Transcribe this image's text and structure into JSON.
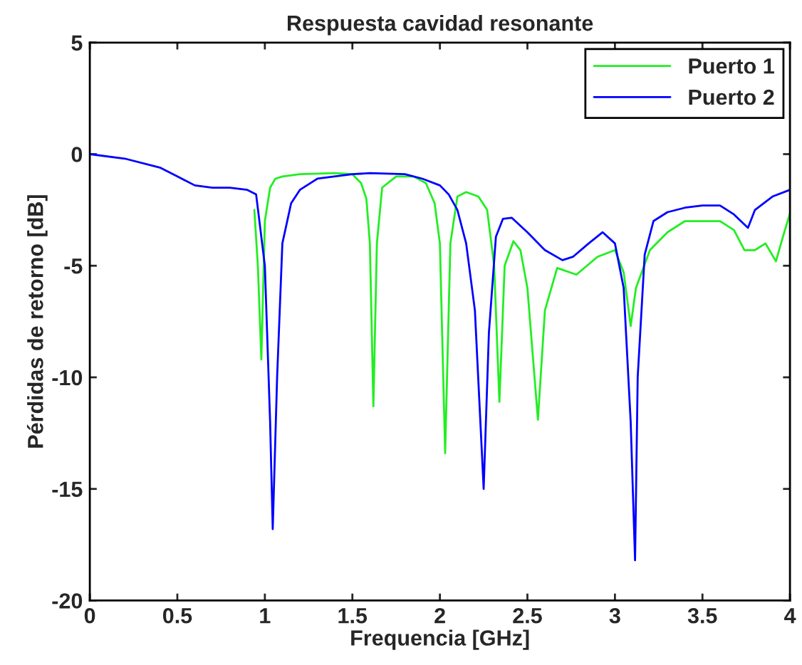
{
  "chart_data": {
    "type": "line",
    "title": "Respuesta cavidad resonante",
    "xlabel": "Frequencia [GHz]",
    "ylabel": "Pérdidas de retorno [dB]",
    "xlim": [
      0,
      4
    ],
    "ylim": [
      -20,
      5
    ],
    "xticks": [
      0,
      0.5,
      1,
      1.5,
      2,
      2.5,
      3,
      3.5,
      4
    ],
    "yticks": [
      -20,
      -15,
      -10,
      -5,
      0,
      5
    ],
    "grid": false,
    "legend": "top right",
    "marker": "none",
    "line_style": "solid",
    "series": [
      {
        "name": "Puerto 1",
        "color": "#22ee22",
        "x": [
          0.94,
          0.96,
          0.98,
          1.0,
          1.03,
          1.06,
          1.1,
          1.2,
          1.4,
          1.5,
          1.55,
          1.58,
          1.6,
          1.62,
          1.64,
          1.67,
          1.75,
          1.85,
          1.92,
          1.97,
          2.0,
          2.03,
          2.06,
          2.1,
          2.15,
          2.22,
          2.27,
          2.31,
          2.34,
          2.37,
          2.42,
          2.46,
          2.5,
          2.56,
          2.6,
          2.67,
          2.78,
          2.9,
          3.0,
          3.05,
          3.09,
          3.12,
          3.2,
          3.3,
          3.4,
          3.5,
          3.6,
          3.68,
          3.74,
          3.8,
          3.86,
          3.92,
          3.96,
          4.0
        ],
        "values": [
          -2.5,
          -5,
          -9.2,
          -3,
          -1.5,
          -1.1,
          -1.0,
          -0.9,
          -0.85,
          -0.9,
          -1.3,
          -2,
          -4,
          -11.3,
          -4,
          -1.5,
          -1.0,
          -1.0,
          -1.3,
          -2.2,
          -4,
          -13.4,
          -4,
          -1.9,
          -1.7,
          -1.9,
          -2.5,
          -5,
          -11.1,
          -5,
          -3.9,
          -4.3,
          -6,
          -11.9,
          -7,
          -5.1,
          -5.4,
          -4.6,
          -4.3,
          -5.3,
          -7.7,
          -6,
          -4.3,
          -3.5,
          -3.0,
          -3.0,
          -3.0,
          -3.4,
          -4.3,
          -4.3,
          -4.0,
          -4.8,
          -3.7,
          -2.65
        ]
      },
      {
        "name": "Puerto 2",
        "color": "#0000ff",
        "x": [
          0,
          0.2,
          0.4,
          0.5,
          0.6,
          0.7,
          0.8,
          0.9,
          0.95,
          1.0,
          1.03,
          1.045,
          1.07,
          1.1,
          1.15,
          1.2,
          1.3,
          1.5,
          1.6,
          1.8,
          1.9,
          2.0,
          2.05,
          2.1,
          2.15,
          2.2,
          2.25,
          2.28,
          2.32,
          2.36,
          2.41,
          2.5,
          2.6,
          2.7,
          2.76,
          2.85,
          2.93,
          3.0,
          3.05,
          3.09,
          3.115,
          3.13,
          3.17,
          3.22,
          3.3,
          3.4,
          3.5,
          3.6,
          3.68,
          3.76,
          3.8,
          3.9,
          4.0
        ],
        "values": [
          0,
          -0.2,
          -0.6,
          -1.0,
          -1.4,
          -1.5,
          -1.5,
          -1.6,
          -1.8,
          -5,
          -12,
          -16.8,
          -10,
          -4,
          -2.2,
          -1.6,
          -1.1,
          -0.9,
          -0.85,
          -0.9,
          -1.1,
          -1.4,
          -1.8,
          -2.5,
          -4,
          -7,
          -15.0,
          -8,
          -3.7,
          -2.9,
          -2.85,
          -3.5,
          -4.3,
          -4.75,
          -4.6,
          -4.0,
          -3.5,
          -4.0,
          -6,
          -12,
          -18.2,
          -10,
          -4.5,
          -3.0,
          -2.6,
          -2.4,
          -2.3,
          -2.3,
          -2.7,
          -3.3,
          -2.5,
          -1.9,
          -1.6
        ]
      }
    ]
  }
}
